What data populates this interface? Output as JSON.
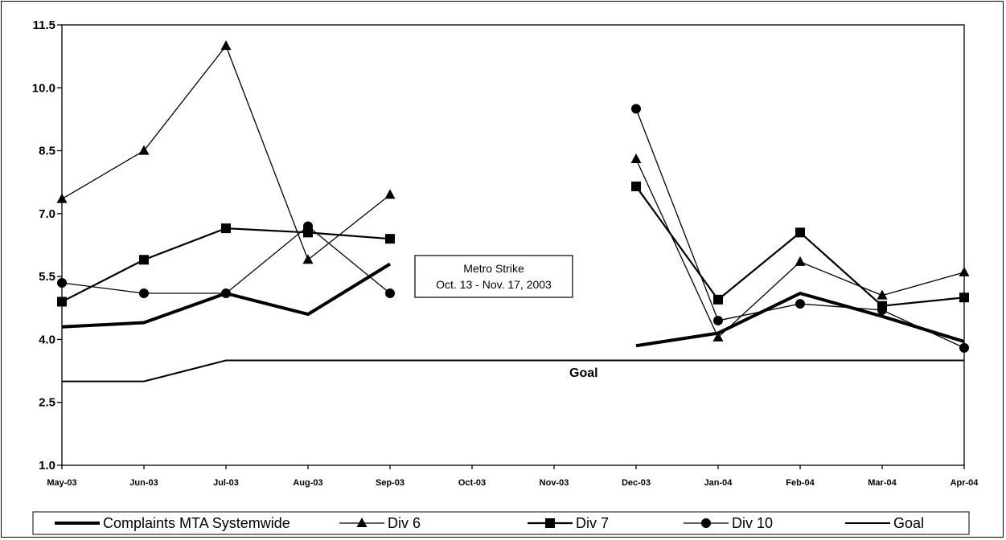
{
  "chart_data": {
    "type": "line",
    "title": "",
    "xlabel": "",
    "ylabel": "",
    "categories": [
      "May-03",
      "Jun-03",
      "Jul-03",
      "Aug-03",
      "Sep-03",
      "Oct-03",
      "Nov-03",
      "Dec-03",
      "Jan-04",
      "Feb-04",
      "Mar-04",
      "Apr-04"
    ],
    "ylim": [
      1.0,
      11.5
    ],
    "yticks": [
      "1.0",
      "2.5",
      "4.0",
      "5.5",
      "7.0",
      "8.5",
      "10.0",
      "11.5"
    ],
    "grid": false,
    "legend_position": "bottom",
    "series": [
      {
        "name": "Complaints MTA Systemwide",
        "marker": "none",
        "stroke": 4,
        "values": [
          4.3,
          4.4,
          5.1,
          4.6,
          5.8,
          null,
          null,
          3.85,
          4.15,
          5.1,
          4.55,
          3.95
        ]
      },
      {
        "name": "Div 6",
        "marker": "triangle",
        "stroke": 1.3,
        "values": [
          7.35,
          8.5,
          11.0,
          5.9,
          7.45,
          null,
          null,
          8.3,
          4.05,
          5.85,
          5.05,
          5.6
        ]
      },
      {
        "name": "Div 7",
        "marker": "square",
        "stroke": 2.2,
        "values": [
          4.9,
          5.9,
          6.65,
          6.55,
          6.4,
          null,
          null,
          7.65,
          4.95,
          6.55,
          4.8,
          5.0
        ]
      },
      {
        "name": "Div 10",
        "marker": "circle",
        "stroke": 1.3,
        "values": [
          5.35,
          5.1,
          5.1,
          6.7,
          5.1,
          null,
          null,
          9.5,
          4.45,
          4.85,
          4.7,
          3.8
        ]
      },
      {
        "name": "Goal",
        "marker": "none",
        "stroke": 2,
        "values": [
          3.0,
          3.0,
          3.5,
          3.5,
          3.5,
          3.5,
          3.5,
          3.5,
          3.5,
          3.5,
          3.5,
          3.5
        ]
      }
    ],
    "annotations": [
      {
        "text_lines": [
          "Metro Strike",
          "Oct. 13 - Nov. 17, 2003"
        ]
      },
      {
        "text": "Goal"
      }
    ]
  }
}
